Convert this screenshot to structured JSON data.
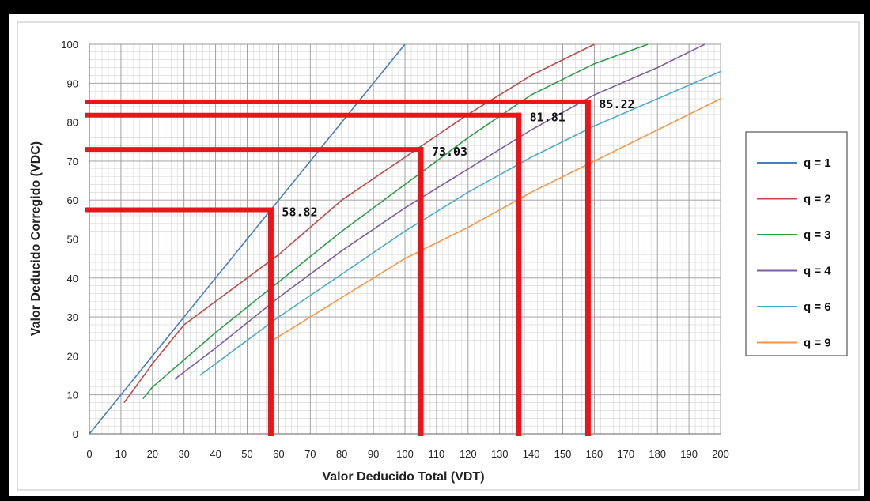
{
  "chart_data": {
    "type": "line",
    "xlabel": "Valor Deducido Total (VDT)",
    "ylabel": "Valor Deducido Corregido (VDC)",
    "xlim": [
      0,
      200
    ],
    "ylim": [
      0,
      100
    ],
    "xticks": [
      0,
      10,
      20,
      30,
      40,
      50,
      60,
      70,
      80,
      90,
      100,
      110,
      120,
      130,
      140,
      150,
      160,
      170,
      180,
      190,
      200
    ],
    "yticks": [
      0,
      10,
      20,
      30,
      40,
      50,
      60,
      70,
      80,
      90,
      100
    ],
    "grid": true,
    "legend_position": "right",
    "series": [
      {
        "name": "q = 1",
        "color": "#4a7ebb",
        "points": [
          [
            0,
            0
          ],
          [
            100,
            100
          ]
        ]
      },
      {
        "name": "q = 2",
        "color": "#be4b48",
        "points": [
          [
            11,
            8
          ],
          [
            20,
            18
          ],
          [
            30,
            28
          ],
          [
            50,
            40
          ],
          [
            60,
            46
          ],
          [
            80,
            60
          ],
          [
            100,
            71
          ],
          [
            120,
            82
          ],
          [
            140,
            92
          ],
          [
            160,
            100
          ]
        ]
      },
      {
        "name": "q = 3",
        "color": "#2e9e48",
        "points": [
          [
            17,
            9
          ],
          [
            20,
            12
          ],
          [
            40,
            26
          ],
          [
            60,
            39
          ],
          [
            80,
            52
          ],
          [
            100,
            64
          ],
          [
            120,
            76
          ],
          [
            140,
            87
          ],
          [
            160,
            95
          ],
          [
            177,
            100
          ]
        ]
      },
      {
        "name": "q = 4",
        "color": "#7d5fa0",
        "points": [
          [
            27,
            14
          ],
          [
            40,
            22
          ],
          [
            60,
            35
          ],
          [
            80,
            47
          ],
          [
            100,
            58
          ],
          [
            120,
            68
          ],
          [
            140,
            78
          ],
          [
            160,
            87
          ],
          [
            180,
            94
          ],
          [
            195,
            100
          ]
        ]
      },
      {
        "name": "q = 6",
        "color": "#4bacc6",
        "points": [
          [
            35,
            15
          ],
          [
            50,
            24
          ],
          [
            60,
            30
          ],
          [
            80,
            41
          ],
          [
            100,
            52
          ],
          [
            120,
            62
          ],
          [
            140,
            71
          ],
          [
            160,
            79
          ],
          [
            180,
            86
          ],
          [
            200,
            93
          ]
        ]
      },
      {
        "name": "q = 9",
        "color": "#f79646",
        "points": [
          [
            58,
            24
          ],
          [
            60,
            25
          ],
          [
            80,
            35
          ],
          [
            100,
            45
          ],
          [
            120,
            53
          ],
          [
            140,
            62
          ],
          [
            160,
            70
          ],
          [
            180,
            78
          ],
          [
            200,
            86
          ]
        ]
      }
    ],
    "annotations": [
      {
        "text": "58.82",
        "x": 57.5,
        "y": 57.5
      },
      {
        "text": "73.03",
        "x": 105,
        "y": 73
      },
      {
        "text": "81.81",
        "x": 136,
        "y": 81.8
      },
      {
        "text": "85.22",
        "x": 158,
        "y": 85.2
      }
    ],
    "marker_color": "#e8151b"
  }
}
